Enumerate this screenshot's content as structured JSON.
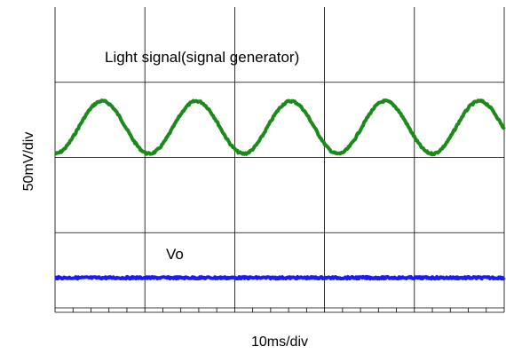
{
  "chart_data": {
    "type": "line",
    "xlabel": "10ms/div",
    "ylabel": "50mV/div",
    "grid": true,
    "x_divisions": 5,
    "y_divisions": 4,
    "annotations": [
      {
        "text": "Light signal(signal generator)",
        "series": "light"
      },
      {
        "text": "Vo",
        "series": "vo"
      }
    ],
    "series": [
      {
        "id": "light",
        "color": "#1a8a1a",
        "waveform": "sine",
        "period_div": 1.05,
        "cycles": 5,
        "offset_div": 2.4,
        "amplitude_div": 0.35
      },
      {
        "id": "vo",
        "color": "#1a1aff",
        "waveform": "flat",
        "offset_div": 0.4,
        "amplitude_div": 0
      }
    ]
  }
}
